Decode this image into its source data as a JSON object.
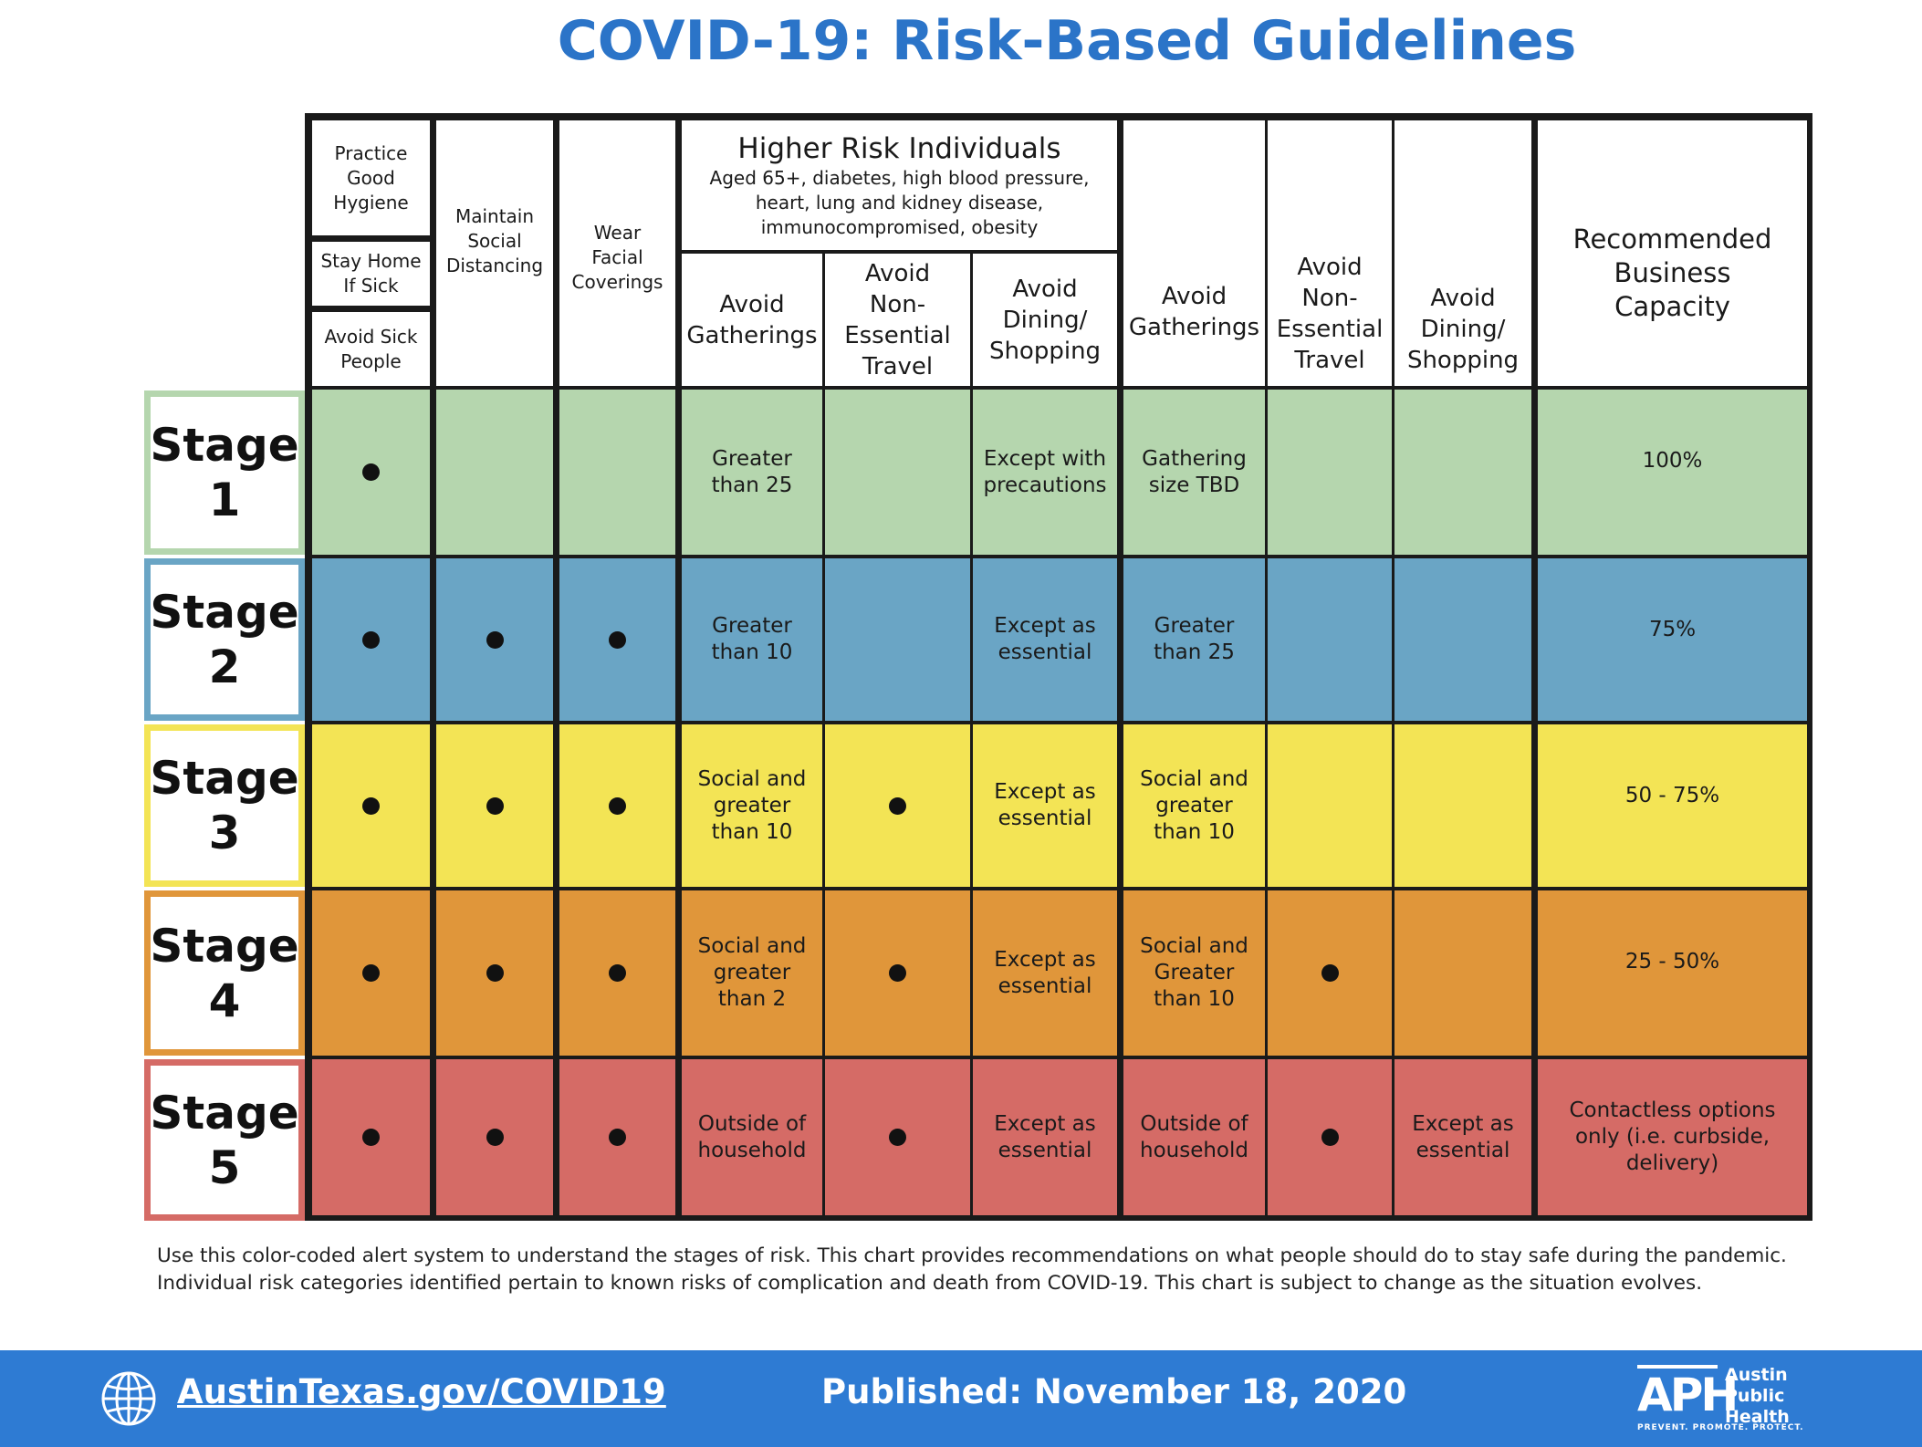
{
  "title": "COVID-19: Risk-Based Guidelines",
  "header": {
    "practice_hygiene": "Practice Good Hygiene",
    "stay_home": "Stay Home If Sick",
    "avoid_sick": "Avoid Sick People",
    "social_distancing": "Maintain Social Distancing",
    "facial_coverings": "Wear Facial Coverings",
    "higher_risk_title": "Higher Risk Individuals",
    "higher_risk_desc": "Aged 65+, diabetes, high blood pressure, heart, lung and kidney disease, immunocompromised, obesity",
    "hr_avoid_gatherings": "Avoid Gatherings",
    "hr_avoid_travel": "Avoid Non-Essential Travel",
    "hr_avoid_dining": "Avoid Dining/ Shopping",
    "avoid_gatherings": "Avoid Gatherings",
    "avoid_travel": "Avoid Non-Essential Travel",
    "avoid_dining": "Avoid Dining/ Shopping",
    "business_capacity": "Recommended Business Capacity"
  },
  "stages": [
    {
      "label": "Stage 1",
      "color": "#b5d6ae",
      "border": "#b5d6ae",
      "hygiene": true,
      "distancing": false,
      "coverings": false,
      "hr_gatherings": "Greater than 25",
      "hr_travel": false,
      "hr_dining": "Except with precautions",
      "gatherings": "Gathering size TBD",
      "travel": false,
      "dining": "",
      "capacity": "100%"
    },
    {
      "label": "Stage 2",
      "color": "#6aa5c5",
      "border": "#6aa5c5",
      "hygiene": true,
      "distancing": true,
      "coverings": true,
      "hr_gatherings": "Greater than 10",
      "hr_travel": false,
      "hr_dining": "Except as essential",
      "gatherings": "Greater than 25",
      "travel": false,
      "dining": "",
      "capacity": "75%"
    },
    {
      "label": "Stage 3",
      "color": "#f3e455",
      "border": "#f3e455",
      "hygiene": true,
      "distancing": true,
      "coverings": true,
      "hr_gatherings": "Social and greater than 10",
      "hr_travel": true,
      "hr_dining": "Except as essential",
      "gatherings": "Social and greater than 10",
      "travel": false,
      "dining": "",
      "capacity": "50 - 75%"
    },
    {
      "label": "Stage 4",
      "color": "#e0963a",
      "border": "#e0963a",
      "hygiene": true,
      "distancing": true,
      "coverings": true,
      "hr_gatherings": "Social and greater than 2",
      "hr_travel": true,
      "hr_dining": "Except as essential",
      "gatherings": "Social and Greater than 10",
      "travel": true,
      "dining": "",
      "capacity": "25 - 50%"
    },
    {
      "label": "Stage 5",
      "color": "#d56b66",
      "border": "#d56b66",
      "hygiene": true,
      "distancing": true,
      "coverings": true,
      "hr_gatherings": "Outside of household",
      "hr_travel": true,
      "hr_dining": "Except as essential",
      "gatherings": "Outside of household",
      "travel": true,
      "dining": "Except as essential",
      "capacity": "Contactless options only (i.e. curbside, delivery)"
    }
  ],
  "note_line1": "Use this color-coded alert system to understand the stages of risk. This chart provides recommendations on what people should do to stay safe during the pandemic.",
  "note_line2": "Individual risk categories identified pertain to known risks of complication and death from COVID-19. This chart is subject to change as the situation evolves.",
  "footer": {
    "url": "AustinTexas.gov/COVID19",
    "published": "Published: November 18, 2020",
    "logo_mark": "APH",
    "logo_line1": "Austin",
    "logo_line2": "Public",
    "logo_line3": "Health",
    "logo_tagline": "PREVENT. PROMOTE. PROTECT."
  }
}
